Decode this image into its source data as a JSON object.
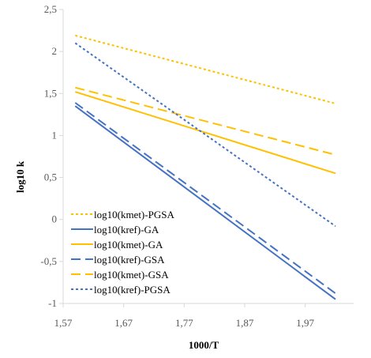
{
  "chart_data": {
    "type": "line",
    "title": "",
    "xlabel": "1000/T",
    "ylabel": "log10 k",
    "xlim": [
      1.57,
      2.05
    ],
    "ylim": [
      -1,
      2.5
    ],
    "x_ticks": [
      "1,57",
      "1,67",
      "1,77",
      "1,87",
      "1,97"
    ],
    "y_ticks": [
      "2,5",
      "2",
      "1,5",
      "1",
      "0,5",
      "0",
      "-0,5",
      "-1"
    ],
    "grid": false,
    "legend_position": "bottom-left",
    "series": [
      {
        "name": "log10(kmet)-PGSA",
        "color": "#FFC000",
        "dash": "dotted",
        "x": [
          1.59,
          2.02
        ],
        "y": [
          2.19,
          1.38
        ]
      },
      {
        "name": "log10(kref)-GA",
        "color": "#4472C4",
        "dash": "solid",
        "x": [
          1.59,
          2.02
        ],
        "y": [
          1.35,
          -0.95
        ]
      },
      {
        "name": "log10(kmet)-GA",
        "color": "#FFC000",
        "dash": "solid",
        "x": [
          1.59,
          2.02
        ],
        "y": [
          1.52,
          0.55
        ]
      },
      {
        "name": "log10(kref)-GSA",
        "color": "#4472C4",
        "dash": "dashed",
        "x": [
          1.59,
          2.02
        ],
        "y": [
          1.39,
          -0.88
        ]
      },
      {
        "name": "log10(kmet)-GSA",
        "color": "#FFC000",
        "dash": "dashed",
        "x": [
          1.59,
          2.02
        ],
        "y": [
          1.57,
          0.77
        ]
      },
      {
        "name": "log10(kref)-PGSA",
        "color": "#4472C4",
        "dash": "dotted",
        "x": [
          1.59,
          2.02
        ],
        "y": [
          2.1,
          -0.08
        ]
      }
    ]
  }
}
